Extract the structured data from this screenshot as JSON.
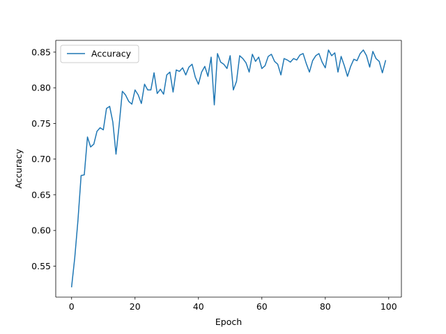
{
  "chart_data": {
    "type": "line",
    "title": "",
    "xlabel": "Epoch",
    "ylabel": "Accuracy",
    "xlim": [
      -5,
      104
    ],
    "ylim": [
      0.5065,
      0.8665
    ],
    "xticks": [
      0,
      20,
      40,
      60,
      80,
      100
    ],
    "xtick_labels": [
      "0",
      "20",
      "40",
      "60",
      "80",
      "100"
    ],
    "yticks": [
      0.55,
      0.6,
      0.65,
      0.7,
      0.75,
      0.8,
      0.85
    ],
    "ytick_labels": [
      "0.55",
      "0.60",
      "0.65",
      "0.70",
      "0.75",
      "0.80",
      "0.85"
    ],
    "grid": false,
    "legend_position": "upper-left",
    "colors": {
      "series": "#1f77b4",
      "axes": "#000000",
      "legend_border": "#cccccc"
    },
    "series": [
      {
        "name": "Accuracy",
        "x": [
          0,
          1,
          2,
          3,
          4,
          5,
          6,
          7,
          8,
          9,
          10,
          11,
          12,
          13,
          14,
          15,
          16,
          17,
          18,
          19,
          20,
          21,
          22,
          23,
          24,
          25,
          26,
          27,
          28,
          29,
          30,
          31,
          32,
          33,
          34,
          35,
          36,
          37,
          38,
          39,
          40,
          41,
          42,
          43,
          44,
          45,
          46,
          47,
          48,
          49,
          50,
          51,
          52,
          53,
          54,
          55,
          56,
          57,
          58,
          59,
          60,
          61,
          62,
          63,
          64,
          65,
          66,
          67,
          68,
          69,
          70,
          71,
          72,
          73,
          74,
          75,
          76,
          77,
          78,
          79,
          80,
          81,
          82,
          83,
          84,
          85,
          86,
          87,
          88,
          89,
          90,
          91,
          92,
          93,
          94,
          95,
          96,
          97,
          98,
          99
        ],
        "values": [
          0.521,
          0.562,
          0.614,
          0.677,
          0.678,
          0.731,
          0.717,
          0.721,
          0.739,
          0.744,
          0.741,
          0.771,
          0.774,
          0.752,
          0.707,
          0.748,
          0.795,
          0.79,
          0.781,
          0.777,
          0.797,
          0.79,
          0.778,
          0.805,
          0.797,
          0.797,
          0.821,
          0.792,
          0.798,
          0.791,
          0.818,
          0.822,
          0.794,
          0.825,
          0.823,
          0.828,
          0.818,
          0.829,
          0.833,
          0.815,
          0.805,
          0.822,
          0.83,
          0.816,
          0.843,
          0.776,
          0.848,
          0.836,
          0.833,
          0.827,
          0.845,
          0.797,
          0.809,
          0.845,
          0.841,
          0.835,
          0.822,
          0.847,
          0.837,
          0.843,
          0.827,
          0.831,
          0.844,
          0.847,
          0.837,
          0.833,
          0.818,
          0.841,
          0.839,
          0.836,
          0.841,
          0.839,
          0.846,
          0.848,
          0.834,
          0.822,
          0.838,
          0.845,
          0.848,
          0.836,
          0.828,
          0.853,
          0.845,
          0.849,
          0.822,
          0.844,
          0.831,
          0.816,
          0.83,
          0.84,
          0.838,
          0.848,
          0.853,
          0.845,
          0.829,
          0.851,
          0.841,
          0.837,
          0.821,
          0.838
        ]
      }
    ]
  }
}
